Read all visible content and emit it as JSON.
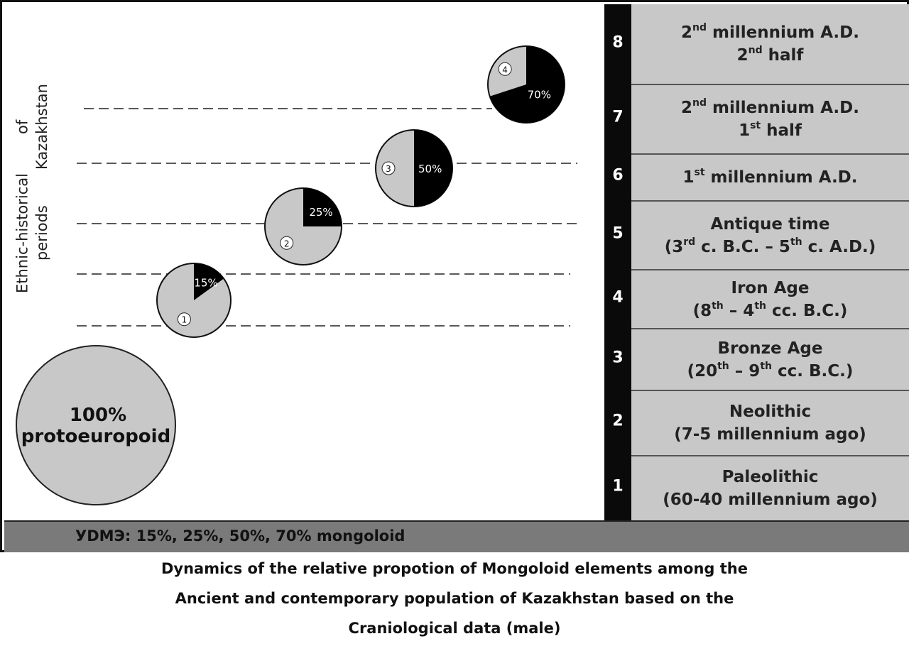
{
  "axis_label": {
    "line1": "Ethnic-historical periods",
    "line2": "of Kazakhstan"
  },
  "base_circle": {
    "line1": "100%",
    "line2": "protoeuropoid"
  },
  "pies": [
    {
      "index": "1",
      "mongoloid_pct": 15,
      "label": "15%"
    },
    {
      "index": "2",
      "mongoloid_pct": 25,
      "label": "25%"
    },
    {
      "index": "3",
      "mongoloid_pct": 50,
      "label": "50%"
    },
    {
      "index": "4",
      "mongoloid_pct": 70,
      "label": "70%"
    }
  ],
  "periods": [
    {
      "num": "8",
      "line1": [
        "2",
        "nd",
        " millennium A.D."
      ],
      "line2": [
        "2",
        "nd",
        " half"
      ]
    },
    {
      "num": "7",
      "line1": [
        "2",
        "nd",
        " millennium A.D."
      ],
      "line2": [
        "1",
        "st",
        " half"
      ]
    },
    {
      "num": "6",
      "line1": [
        "1",
        "st",
        " millennium A.D."
      ]
    },
    {
      "num": "5",
      "line1": [
        "Antique time"
      ],
      "line2": [
        "(3",
        "rd",
        " c. B.C. – 5",
        "th",
        " c. A.D.)"
      ]
    },
    {
      "num": "4",
      "line1": [
        "Iron Age"
      ],
      "line2": [
        "(8",
        "th",
        " – 4",
        "th",
        " cc. B.C.)"
      ]
    },
    {
      "num": "3",
      "line1": [
        "Bronze Age"
      ],
      "line2": [
        "(20",
        "th",
        " – 9",
        "th",
        " cc. B.C.)"
      ]
    },
    {
      "num": "2",
      "line1": [
        "Neolithic"
      ],
      "line2": [
        "(7-5 millennium ago)"
      ]
    },
    {
      "num": "1",
      "line1": [
        "Paleolithic"
      ],
      "line2": [
        "(60-40 millennium ago)"
      ]
    }
  ],
  "legend": "УDMЭ: 15%, 25%, 50%, 70% mongoloid",
  "caption": {
    "line1": "Dynamics of the relative propotion of Mongoloid elements among the",
    "line2": "Ancient and contemporary population of Kazakhstan based on the",
    "line3": "Craniological data (male)"
  },
  "colors": {
    "mongoloid": "#000000",
    "protoeuropoid": "#c8c8c8",
    "number_column": "#0a0a0a",
    "legend_bar": "#7a7a7a"
  }
}
